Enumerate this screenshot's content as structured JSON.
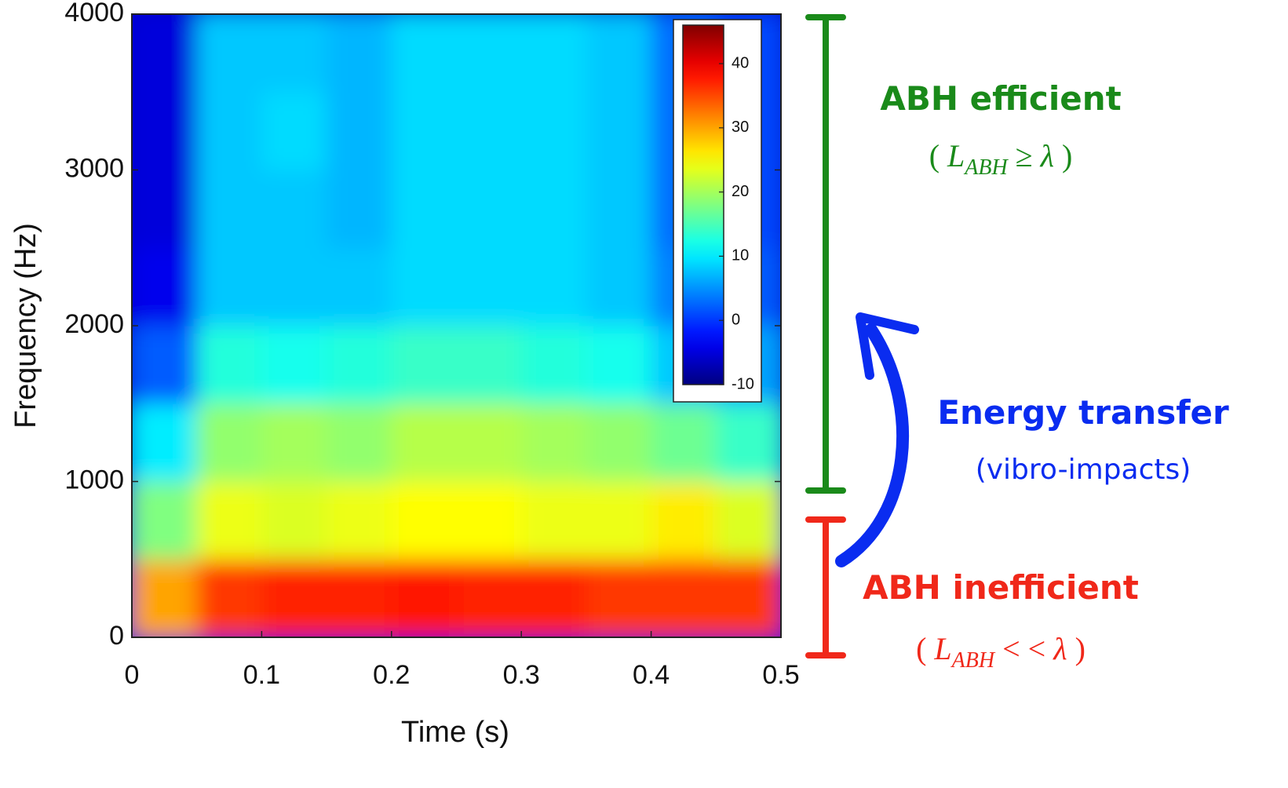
{
  "chart_data": {
    "type": "spectrogram",
    "x_label": "Time (s)",
    "y_label": "Frequency (Hz)",
    "xlim": [
      0,
      0.5
    ],
    "ylim": [
      0,
      4000
    ],
    "xticks": [
      0,
      0.1,
      0.2,
      0.3,
      0.4,
      0.5
    ],
    "yticks": [
      0,
      1000,
      2000,
      3000,
      4000
    ],
    "colormap": "jet",
    "time_bins": [
      0,
      0.05,
      0.1,
      0.15,
      0.2,
      0.25,
      0.3,
      0.35,
      0.4,
      0.45,
      0.5
    ],
    "frequency_bins": [
      0,
      500,
      1000,
      1500,
      2000,
      2500,
      3000,
      3500,
      4000
    ],
    "values": [
      [
        30,
        36,
        37,
        37,
        38,
        37,
        37,
        36,
        36,
        36
      ],
      [
        18,
        24,
        23,
        24,
        25,
        25,
        24,
        24,
        26,
        23
      ],
      [
        10,
        19,
        20,
        19,
        21,
        21,
        20,
        19,
        17,
        14
      ],
      [
        2,
        13,
        12,
        13,
        14,
        14,
        13,
        12,
        8,
        6
      ],
      [
        -4,
        8,
        8,
        8,
        9,
        9,
        9,
        8,
        4,
        2
      ],
      [
        -5,
        8,
        8,
        7,
        9,
        9,
        9,
        8,
        3,
        1
      ],
      [
        -5,
        8,
        9,
        7,
        9,
        9,
        9,
        8,
        3,
        1
      ],
      [
        -5,
        8,
        8,
        7,
        9,
        9,
        9,
        8,
        3,
        1
      ]
    ],
    "colorbar": {
      "clim": [
        -10,
        46
      ],
      "ticks": [
        -10,
        0,
        10,
        20,
        30,
        40
      ]
    }
  },
  "annotations": {
    "efficient": {
      "title": "ABH efficient",
      "open": "(",
      "symbol": "L",
      "subscript": "ABH",
      "relation": "≥",
      "variable": "λ",
      "close": ")",
      "color": "#1a8a1a"
    },
    "transfer": {
      "title": "Energy transfer",
      "subtitle": "(vibro-impacts)",
      "color": "#0a2cf0"
    },
    "inefficient": {
      "title": "ABH inefficient",
      "open": "(",
      "symbol": "L",
      "subscript": "ABH",
      "relation": "< <",
      "variable": "λ",
      "close": ")",
      "color": "#f0281a"
    }
  }
}
